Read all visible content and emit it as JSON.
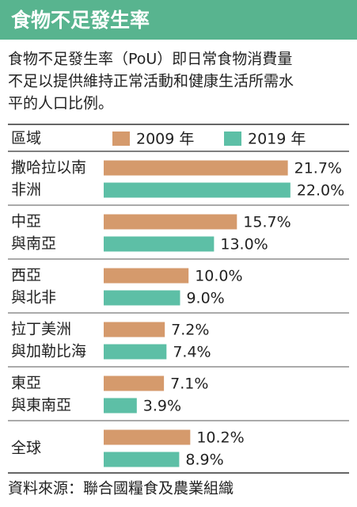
{
  "chart_data": {
    "type": "bar",
    "title": "食物不足發生率",
    "description": [
      "食物不足發生率（PoU）即日常食物消費量",
      "不足以提供維持正常活動和健康生活所需水",
      "平的人口比例。"
    ],
    "category_header": "區域",
    "categories": [
      [
        "撒哈拉以南",
        "非洲"
      ],
      [
        "中亞",
        "與南亞"
      ],
      [
        "西亞",
        "與北非"
      ],
      [
        "拉丁美洲",
        "與加勒比海"
      ],
      [
        "東亞",
        "與東南亞"
      ],
      [
        "全球"
      ]
    ],
    "series": [
      {
        "name": "2009 年",
        "color": "#d59a6c",
        "values": [
          21.7,
          15.7,
          10.0,
          7.2,
          7.1,
          10.2
        ],
        "value_labels": [
          "21.7%",
          "15.7%",
          "10.0%",
          "7.2%",
          "7.1%",
          "10.2%"
        ]
      },
      {
        "name": "2019 年",
        "color": "#5dbfa6",
        "values": [
          22.0,
          13.0,
          9.0,
          7.4,
          3.9,
          8.9
        ],
        "value_labels": [
          "22.0%",
          "13.0%",
          "9.0%",
          "7.4%",
          "3.9%",
          "8.9%"
        ]
      }
    ],
    "source": "資料來源：聯合國糧食及農業組織"
  }
}
